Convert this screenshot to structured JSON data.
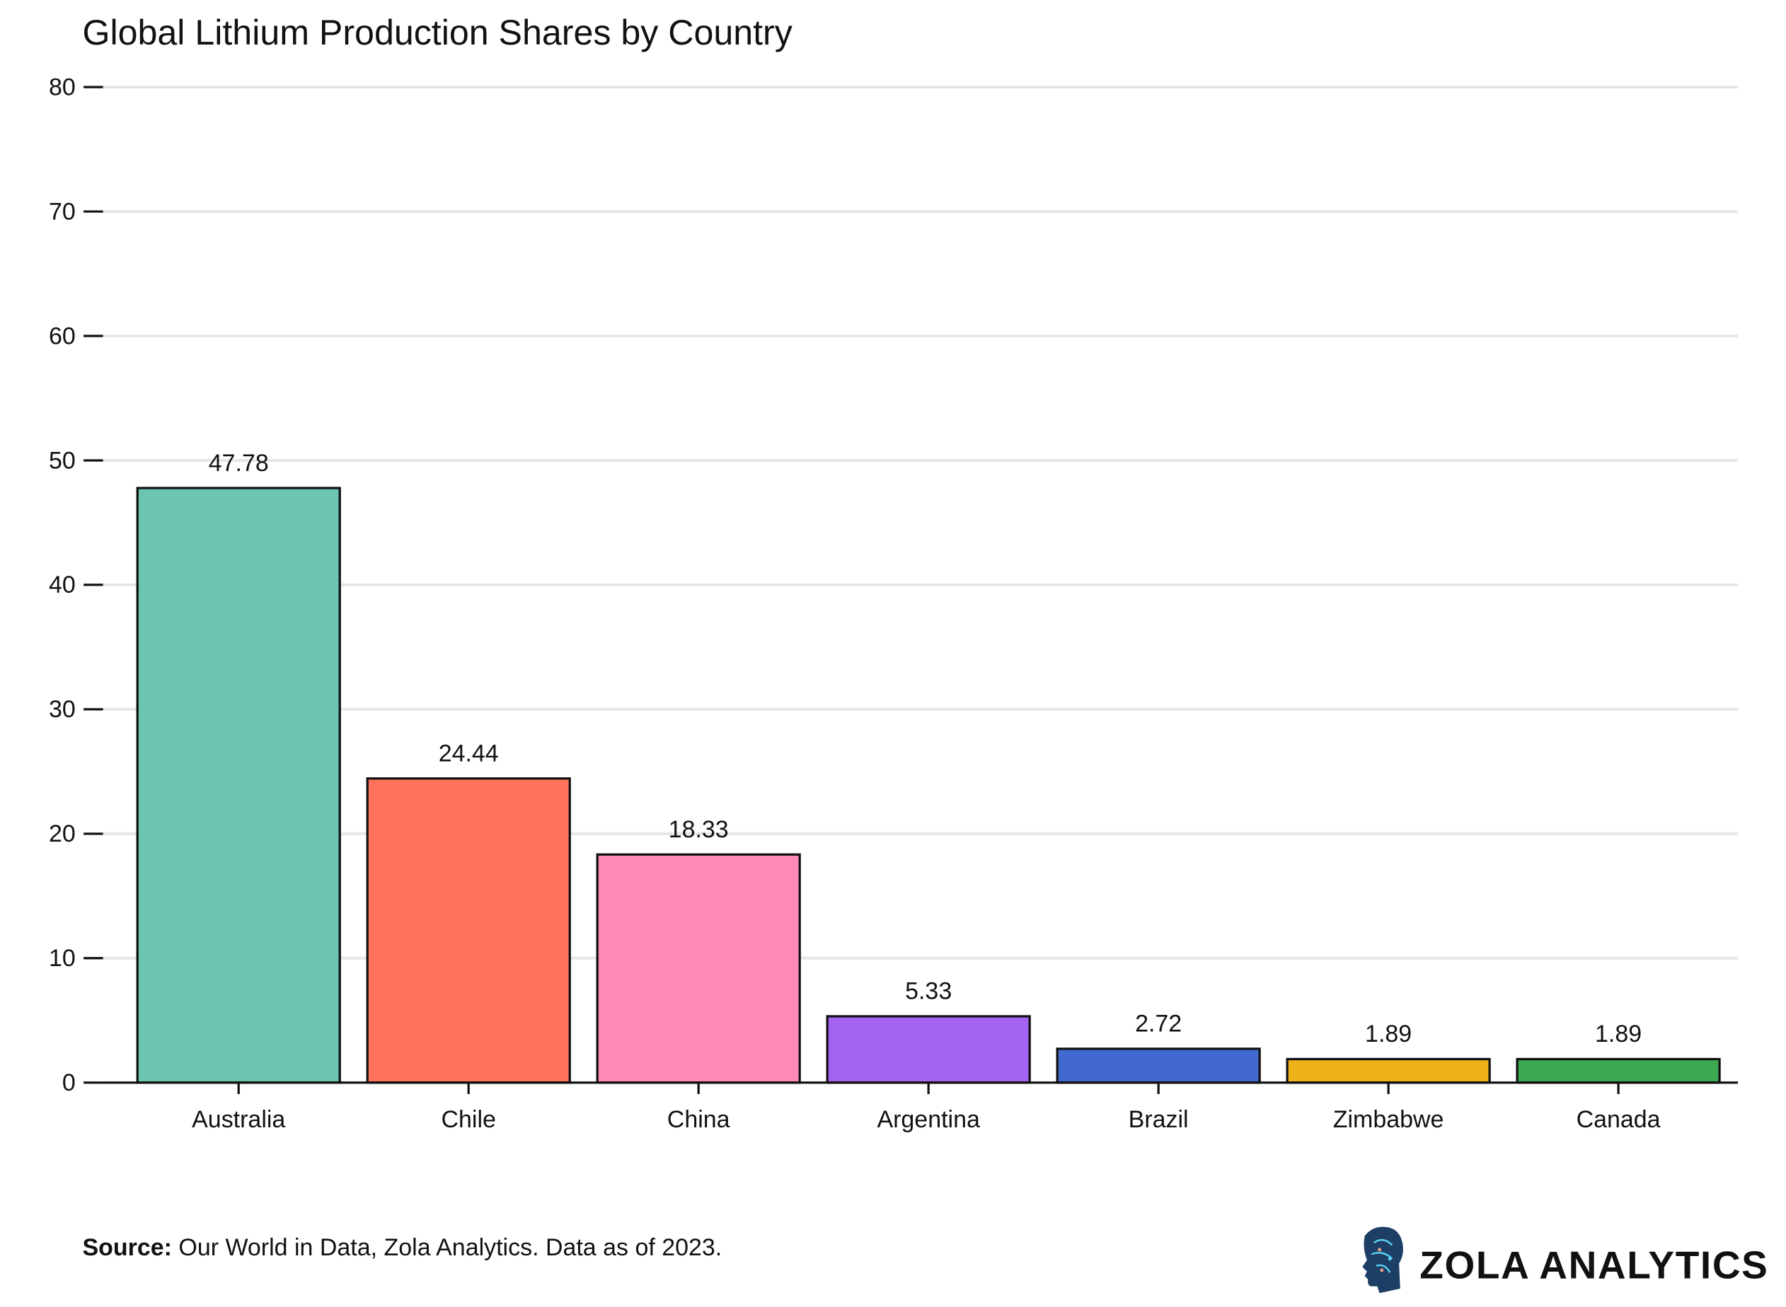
{
  "chart_data": {
    "type": "bar",
    "title": "Global Lithium Production Shares by Country",
    "xlabel": "",
    "ylabel": "",
    "categories": [
      "Australia",
      "Chile",
      "China",
      "Argentina",
      "Brazil",
      "Zimbabwe",
      "Canada"
    ],
    "values": [
      47.78,
      24.44,
      18.33,
      5.33,
      2.72,
      1.89,
      1.89
    ],
    "data_labels": [
      "47.78",
      "24.44",
      "18.33",
      "5.33",
      "2.72",
      "1.89",
      "1.89"
    ],
    "colors": [
      "#6CC5B0",
      "#FF725C",
      "#FF8AB7",
      "#A463F2",
      "#4269D0",
      "#EFB118",
      "#3CA951"
    ],
    "ylim": [
      0,
      80
    ],
    "yticks": [
      0,
      10,
      20,
      30,
      40,
      50,
      60,
      70,
      80
    ],
    "grid": true
  },
  "footer": {
    "source_label": "Source:",
    "source_text": " Our World in Data, Zola Analytics. Data as of 2023.",
    "logo_text": "ZOLA ANALYTICS"
  }
}
